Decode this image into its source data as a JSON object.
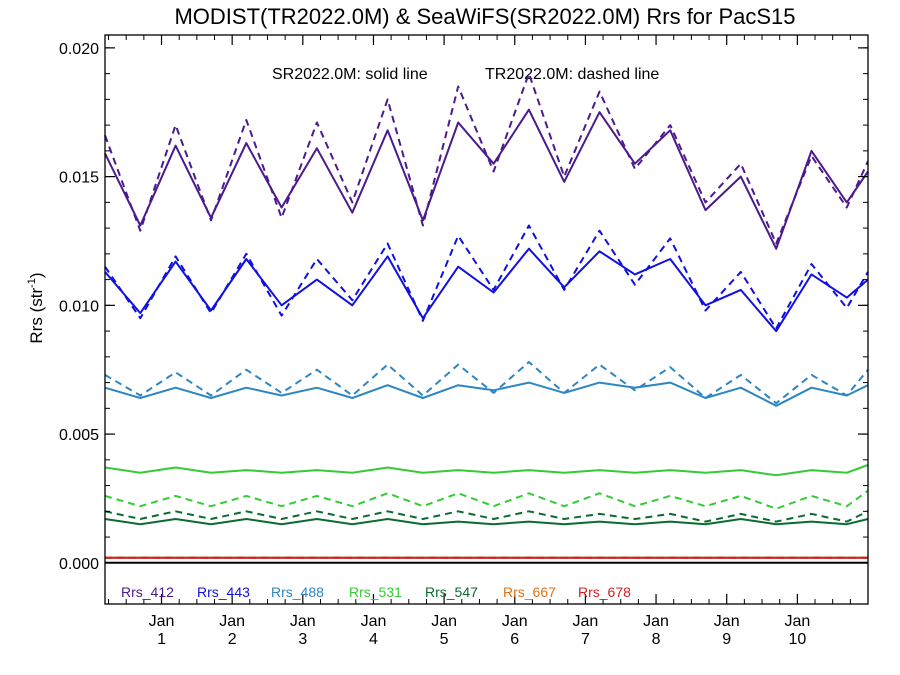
{
  "chart_data": {
    "type": "line",
    "title": "MODIST(TR2022.0M) & SeaWiFS(SR2022.0M)  Rrs for PacS15",
    "annotation": {
      "solid": "SR2022.0M: solid line",
      "dashed": "TR2022.0M: dashed line"
    },
    "ylabel": "Rrs (str",
    "ylabel_sup": "-1",
    "ylabel_end": ")",
    "ylim": [
      -0.0016,
      0.0205
    ],
    "xlim": [
      0.2,
      11.0
    ],
    "y_ticks": [
      {
        "value": 0.0,
        "label": "0.000"
      },
      {
        "value": 0.005,
        "label": "0.005"
      },
      {
        "value": 0.01,
        "label": "0.010"
      },
      {
        "value": 0.015,
        "label": "0.015"
      },
      {
        "value": 0.02,
        "label": "0.020"
      }
    ],
    "x_ticks": [
      {
        "value": 1,
        "month": "Jan",
        "year": "1"
      },
      {
        "value": 2,
        "month": "Jan",
        "year": "2"
      },
      {
        "value": 3,
        "month": "Jan",
        "year": "3"
      },
      {
        "value": 4,
        "month": "Jan",
        "year": "4"
      },
      {
        "value": 5,
        "month": "Jan",
        "year": "5"
      },
      {
        "value": 6,
        "month": "Jan",
        "year": "6"
      },
      {
        "value": 7,
        "month": "Jan",
        "year": "7"
      },
      {
        "value": 8,
        "month": "Jan",
        "year": "8"
      },
      {
        "value": 9,
        "month": "Jan",
        "year": "9"
      },
      {
        "value": 10,
        "month": "Jan",
        "year": "10"
      }
    ],
    "x": [
      0.2,
      0.7,
      1.2,
      1.7,
      2.2,
      2.7,
      3.2,
      3.7,
      4.2,
      4.7,
      5.2,
      5.7,
      6.2,
      6.7,
      7.2,
      7.7,
      8.2,
      8.7,
      9.2,
      9.7,
      10.2,
      10.7,
      11.0
    ],
    "series": [
      {
        "name": "Rrs_412 solid",
        "legend_label": "Rrs_412",
        "color": "#4b1a8c",
        "dash": false,
        "values": [
          0.0159,
          0.0131,
          0.0162,
          0.0134,
          0.0163,
          0.0138,
          0.0161,
          0.0136,
          0.0168,
          0.0133,
          0.0171,
          0.0155,
          0.0176,
          0.0148,
          0.0175,
          0.0155,
          0.0168,
          0.0137,
          0.015,
          0.0122,
          0.016,
          0.014,
          0.0152
        ]
      },
      {
        "name": "Rrs_412 dashed",
        "color": "#4b1a8c",
        "dash": true,
        "values": [
          0.0166,
          0.0129,
          0.017,
          0.0133,
          0.0172,
          0.0134,
          0.0171,
          0.014,
          0.018,
          0.0131,
          0.0185,
          0.0152,
          0.019,
          0.015,
          0.0183,
          0.0153,
          0.017,
          0.014,
          0.0155,
          0.0124,
          0.0158,
          0.0138,
          0.0156
        ]
      },
      {
        "name": "Rrs_443 solid",
        "legend_label": "Rrs_443",
        "color": "#1010e0",
        "dash": false,
        "values": [
          0.0113,
          0.0097,
          0.0117,
          0.0098,
          0.0118,
          0.01,
          0.011,
          0.01,
          0.0119,
          0.0095,
          0.0115,
          0.0105,
          0.0122,
          0.0107,
          0.0121,
          0.0112,
          0.0118,
          0.01,
          0.0106,
          0.009,
          0.0112,
          0.0103,
          0.011
        ]
      },
      {
        "name": "Rrs_443 dashed",
        "color": "#1010e0",
        "dash": true,
        "values": [
          0.0115,
          0.0095,
          0.0119,
          0.0097,
          0.012,
          0.0096,
          0.0118,
          0.0102,
          0.0124,
          0.0094,
          0.0127,
          0.0106,
          0.0131,
          0.0106,
          0.0129,
          0.0108,
          0.0126,
          0.0098,
          0.0113,
          0.0091,
          0.0116,
          0.0099,
          0.0113
        ]
      },
      {
        "name": "Rrs_488 solid",
        "legend_label": "Rrs_488",
        "color": "#2e86c1",
        "dash": false,
        "values": [
          0.0068,
          0.0064,
          0.0068,
          0.0064,
          0.0068,
          0.0065,
          0.0068,
          0.0064,
          0.0069,
          0.0064,
          0.0069,
          0.0067,
          0.007,
          0.0066,
          0.007,
          0.0068,
          0.007,
          0.0064,
          0.0068,
          0.0061,
          0.0068,
          0.0065,
          0.0069
        ]
      },
      {
        "name": "Rrs_488 dashed",
        "color": "#2e86c1",
        "dash": true,
        "values": [
          0.0073,
          0.0065,
          0.0074,
          0.0065,
          0.0075,
          0.0066,
          0.0075,
          0.0065,
          0.0077,
          0.0065,
          0.0077,
          0.0066,
          0.0078,
          0.0066,
          0.0077,
          0.0067,
          0.0076,
          0.0064,
          0.0073,
          0.0062,
          0.0073,
          0.0065,
          0.0075
        ]
      },
      {
        "name": "Rrs_531 solid",
        "legend_label": "Rrs_531",
        "color": "#33cc33",
        "dash": false,
        "values": [
          0.0037,
          0.0035,
          0.0037,
          0.0035,
          0.0036,
          0.0035,
          0.0036,
          0.0035,
          0.0037,
          0.0035,
          0.0036,
          0.0035,
          0.0036,
          0.0035,
          0.0036,
          0.0035,
          0.0036,
          0.0035,
          0.0036,
          0.0034,
          0.0036,
          0.0035,
          0.0038
        ]
      },
      {
        "name": "Rrs_531 dashed",
        "color": "#33cc33",
        "dash": true,
        "values": [
          0.0026,
          0.0022,
          0.0026,
          0.0022,
          0.0026,
          0.0022,
          0.0026,
          0.0022,
          0.0027,
          0.0022,
          0.0027,
          0.0022,
          0.0027,
          0.0022,
          0.0027,
          0.0022,
          0.0026,
          0.0022,
          0.0026,
          0.0021,
          0.0026,
          0.0022,
          0.0028
        ]
      },
      {
        "name": "Rrs_547 solid",
        "legend_label": "Rrs_547",
        "color": "#0b6b30",
        "dash": false,
        "values": [
          0.0017,
          0.0015,
          0.0017,
          0.0015,
          0.0017,
          0.0015,
          0.0017,
          0.0015,
          0.0017,
          0.0015,
          0.0016,
          0.0015,
          0.0016,
          0.0015,
          0.0016,
          0.0015,
          0.0016,
          0.0015,
          0.0017,
          0.0015,
          0.0016,
          0.0015,
          0.0017
        ]
      },
      {
        "name": "Rrs_547 dashed",
        "color": "#0b6b30",
        "dash": true,
        "values": [
          0.002,
          0.0017,
          0.002,
          0.0017,
          0.002,
          0.0017,
          0.002,
          0.0017,
          0.002,
          0.0017,
          0.002,
          0.0017,
          0.002,
          0.0017,
          0.0019,
          0.0017,
          0.0019,
          0.0016,
          0.0019,
          0.0016,
          0.0019,
          0.0016,
          0.002
        ]
      },
      {
        "name": "Rrs_667 solid",
        "legend_label": "Rrs_667",
        "color": "#e0731a",
        "dash": false,
        "values": [
          0.0002,
          0.0002,
          0.0002,
          0.0002,
          0.0002,
          0.0002,
          0.0002,
          0.0002,
          0.0002,
          0.0002,
          0.0002,
          0.0002,
          0.0002,
          0.0002,
          0.0002,
          0.0002,
          0.0002,
          0.0002,
          0.0002,
          0.0002,
          0.0002,
          0.0002,
          0.0002
        ]
      },
      {
        "name": "Rrs_678 solid",
        "legend_label": "Rrs_678",
        "color": "#cc2222",
        "dash": false,
        "values": [
          0.0002,
          0.0002,
          0.0002,
          0.0002,
          0.0002,
          0.0002,
          0.0002,
          0.0002,
          0.0002,
          0.0002,
          0.0002,
          0.0002,
          0.0002,
          0.0002,
          0.0002,
          0.0002,
          0.0002,
          0.0002,
          0.0002,
          0.0002,
          0.0002,
          0.0002,
          0.0002
        ]
      },
      {
        "name": "Rrs_678 dashed",
        "color": "#cc2222",
        "dash": true,
        "values": [
          0.0002,
          0.0002,
          0.0002,
          0.0002,
          0.0002,
          0.0002,
          0.0002,
          0.0002,
          0.0002,
          0.0002,
          0.0002,
          0.0002,
          0.0002,
          0.0002,
          0.0002,
          0.0002,
          0.0002,
          0.0002,
          0.0002,
          0.0002,
          0.0002,
          0.0002,
          0.0002
        ]
      }
    ],
    "zero_line": true
  }
}
